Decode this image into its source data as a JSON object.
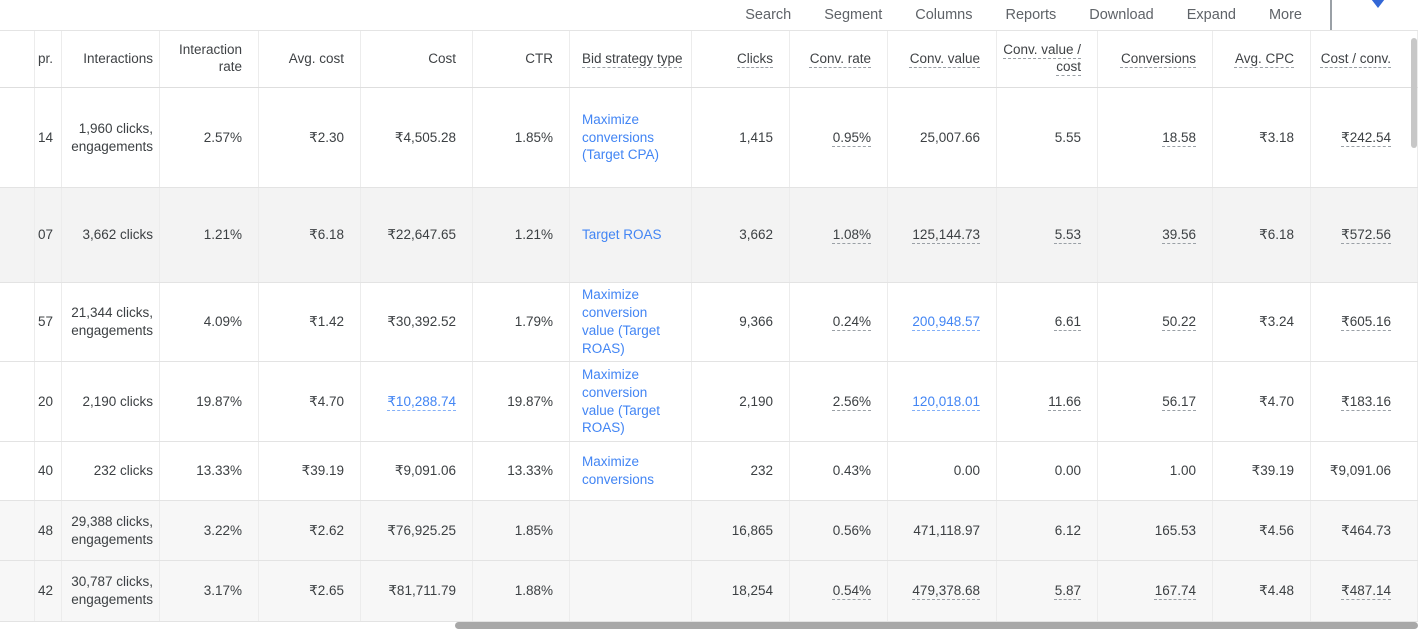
{
  "toolbar": {
    "items": [
      "Search",
      "Segment",
      "Columns",
      "Reports",
      "Download",
      "Expand",
      "More"
    ]
  },
  "icons": {
    "caret_down": "caret-down-icon",
    "caret_color": "#3367d6"
  },
  "colors": {
    "link_blue": "#4285f4",
    "text": "#3c4043",
    "shaded_row": "#f3f3f3",
    "summary_row": "#f7f7f7",
    "scrollbar": "#a8a8a8"
  },
  "table": {
    "columns": [
      {
        "id": "spacer",
        "label": "",
        "dashed": false
      },
      {
        "id": "impr",
        "label": "pr.",
        "dashed": false
      },
      {
        "id": "interactions",
        "label": "Interactions",
        "dashed": false
      },
      {
        "id": "interaction-rate",
        "label": "Interaction rate",
        "dashed": false
      },
      {
        "id": "avg-cost",
        "label": "Avg. cost",
        "dashed": false
      },
      {
        "id": "cost",
        "label": "Cost",
        "dashed": false
      },
      {
        "id": "ctr",
        "label": "CTR",
        "dashed": false
      },
      {
        "id": "bid-strategy-type",
        "label": "Bid strategy type",
        "dashed": true,
        "align": "left"
      },
      {
        "id": "clicks",
        "label": "Clicks",
        "dashed": true
      },
      {
        "id": "conv-rate",
        "label": "Conv. rate",
        "dashed": true
      },
      {
        "id": "conv-value",
        "label": "Conv. value",
        "dashed": true
      },
      {
        "id": "conv-value-cost",
        "label": "Conv. value / cost",
        "dashed": true
      },
      {
        "id": "conversions",
        "label": "Conversions",
        "dashed": true
      },
      {
        "id": "avg-cpc",
        "label": "Avg. CPC",
        "dashed": true
      },
      {
        "id": "cost-conv",
        "label": "Cost / conv.",
        "dashed": true
      }
    ],
    "rows": [
      {
        "cells": [
          "",
          "14",
          "1,960 clicks, engagements",
          "2.57%",
          "₹2.30",
          "₹4,505.28",
          "1.85%",
          {
            "t": "Maximize conversions (Target CPA)",
            "l": 1
          },
          "1,415",
          {
            "t": "0.95%",
            "d": 1
          },
          "25,007.66",
          "5.55",
          {
            "t": "18.58",
            "d": 1
          },
          "₹3.18",
          {
            "t": "₹242.54",
            "d": 1
          }
        ]
      },
      {
        "cells": [
          "",
          "07",
          "3,662 clicks",
          "1.21%",
          "₹6.18",
          "₹22,647.65",
          "1.21%",
          {
            "t": "Target ROAS",
            "l": 1
          },
          "3,662",
          {
            "t": "1.08%",
            "d": 1
          },
          {
            "t": "125,144.73",
            "d": 1
          },
          {
            "t": "5.53",
            "d": 1
          },
          {
            "t": "39.56",
            "d": 1
          },
          "₹6.18",
          {
            "t": "₹572.56",
            "d": 1
          }
        ]
      },
      {
        "cells": [
          "",
          "57",
          "21,344 clicks, engagements",
          "4.09%",
          "₹1.42",
          "₹30,392.52",
          "1.79%",
          {
            "t": "Maximize conversion value (Target ROAS)",
            "l": 1
          },
          "9,366",
          {
            "t": "0.24%",
            "d": 1
          },
          {
            "t": "200,948.57",
            "d": 1,
            "l": 1
          },
          {
            "t": "6.61",
            "d": 1
          },
          {
            "t": "50.22",
            "d": 1
          },
          "₹3.24",
          {
            "t": "₹605.16",
            "d": 1
          }
        ]
      },
      {
        "cells": [
          "",
          "20",
          "2,190 clicks",
          "19.87%",
          "₹4.70",
          {
            "t": "₹10,288.74",
            "d": 1,
            "l": 1
          },
          "19.87%",
          {
            "t": "Maximize conversion value (Target ROAS)",
            "l": 1
          },
          "2,190",
          {
            "t": "2.56%",
            "d": 1
          },
          {
            "t": "120,018.01",
            "d": 1,
            "l": 1
          },
          {
            "t": "11.66",
            "d": 1
          },
          {
            "t": "56.17",
            "d": 1
          },
          "₹4.70",
          {
            "t": "₹183.16",
            "d": 1
          }
        ]
      },
      {
        "cells": [
          "",
          "40",
          "232 clicks",
          "13.33%",
          "₹39.19",
          "₹9,091.06",
          "13.33%",
          {
            "t": "Maximize conversions",
            "l": 1
          },
          "232",
          "0.43%",
          "0.00",
          "0.00",
          "1.00",
          "₹39.19",
          "₹9,091.06"
        ]
      },
      {
        "cells": [
          "",
          "48",
          "29,388 clicks, engagements",
          "3.22%",
          "₹2.62",
          "₹76,925.25",
          "1.85%",
          "",
          "16,865",
          "0.56%",
          "471,118.97",
          "6.12",
          "165.53",
          "₹4.56",
          "₹464.73"
        ]
      },
      {
        "cells": [
          "",
          "42",
          "30,787 clicks, engagements",
          "3.17%",
          "₹2.65",
          "₹81,711.79",
          "1.88%",
          "",
          "18,254",
          {
            "t": "0.54%",
            "d": 1
          },
          {
            "t": "479,378.68",
            "d": 1
          },
          {
            "t": "5.87",
            "d": 1
          },
          {
            "t": "167.74",
            "d": 1
          },
          "₹4.48",
          {
            "t": "₹487.14",
            "d": 1
          }
        ]
      }
    ]
  }
}
